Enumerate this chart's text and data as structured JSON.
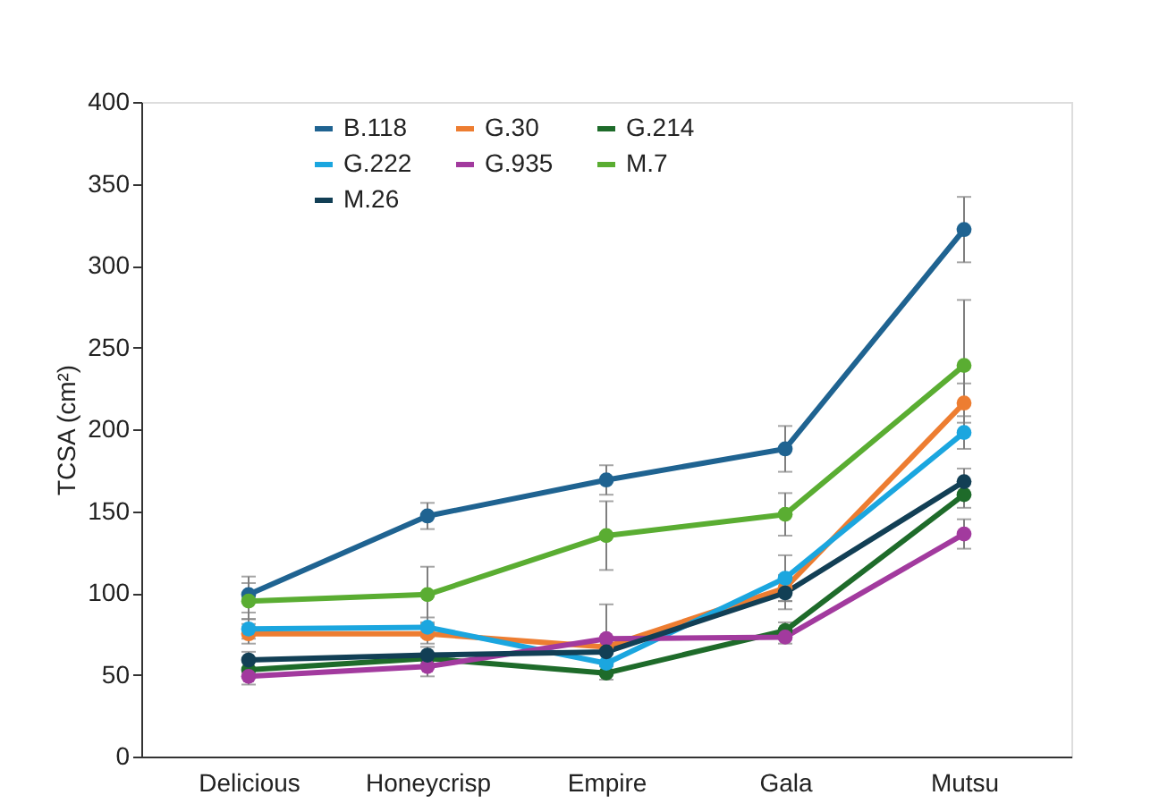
{
  "chart_data": {
    "type": "line",
    "ylabel": "TCSA (cm²)",
    "categories": [
      "Delicious",
      "Honeycrisp",
      "Empire",
      "Gala",
      "Mutsu"
    ],
    "series": [
      {
        "name": "B.118",
        "color": "#1f6391",
        "values": [
          99,
          147,
          169,
          188,
          322
        ],
        "errors": [
          11,
          8,
          9,
          14,
          20
        ]
      },
      {
        "name": "G.30",
        "color": "#ed7d31",
        "values": [
          75,
          75,
          67,
          103,
          216
        ],
        "errors": [
          6,
          6,
          null,
          8,
          12
        ]
      },
      {
        "name": "G.214",
        "color": "#1e6b2a",
        "values": [
          53,
          60,
          51,
          77,
          160
        ],
        "errors": [
          null,
          null,
          4,
          5,
          8
        ]
      },
      {
        "name": "G.222",
        "color": "#1ba6df",
        "values": [
          78,
          79,
          57,
          109,
          198
        ],
        "errors": [
          6,
          6,
          null,
          14,
          10
        ]
      },
      {
        "name": "G.935",
        "color": "#a23a9e",
        "values": [
          49,
          55,
          72,
          73,
          136
        ],
        "errors": [
          5,
          6,
          21,
          4,
          9
        ]
      },
      {
        "name": "M.7",
        "color": "#5aad32",
        "values": [
          95,
          99,
          135,
          148,
          239
        ],
        "errors": [
          11,
          17,
          21,
          13,
          40
        ]
      },
      {
        "name": "M.26",
        "color": "#123f55",
        "values": [
          59,
          62,
          64,
          100,
          168
        ],
        "errors": [
          5,
          5,
          null,
          10,
          8
        ]
      }
    ],
    "ylim": [
      0,
      400
    ],
    "yticks": [
      0,
      50,
      100,
      150,
      200,
      250,
      300,
      350,
      400
    ],
    "grid": false,
    "legend": "top",
    "marker": "circle",
    "line_style": "solid"
  }
}
